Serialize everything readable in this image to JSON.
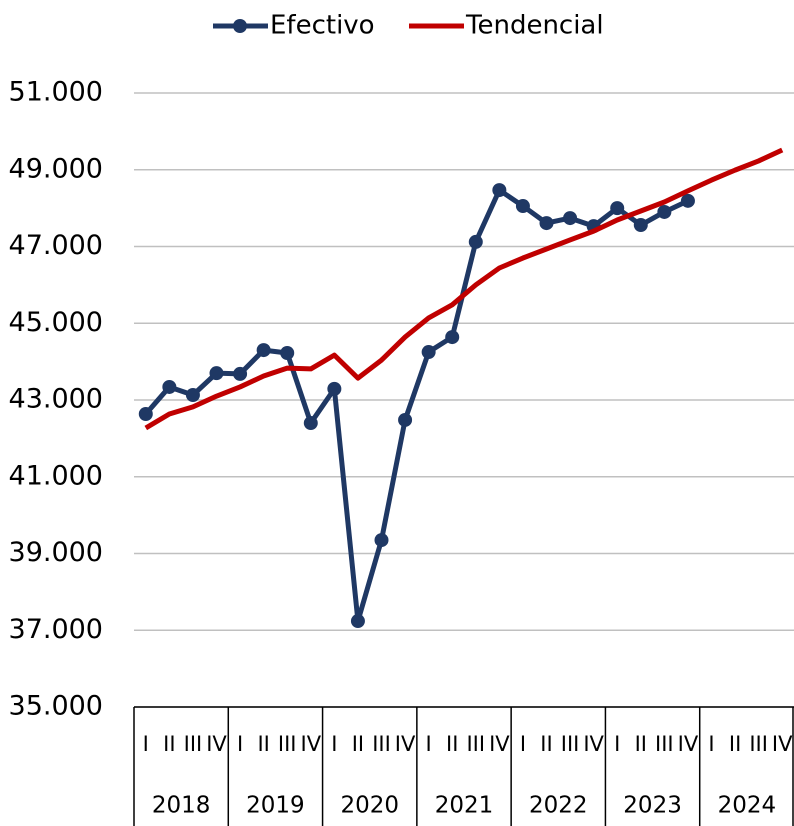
{
  "chart_data": {
    "type": "line",
    "categories": [
      "I",
      "II",
      "III",
      "IV",
      "I",
      "II",
      "III",
      "IV",
      "I",
      "II",
      "III",
      "IV",
      "I",
      "II",
      "III",
      "IV",
      "I",
      "II",
      "III",
      "IV",
      "I",
      "II",
      "III",
      "IV",
      "I",
      "II",
      "III",
      "IV"
    ],
    "groups": [
      "2018",
      "2019",
      "2020",
      "2021",
      "2022",
      "2023",
      "2024"
    ],
    "series": [
      {
        "name": "Efectivo",
        "color": "#1f3864",
        "marker": true,
        "values": [
          42635,
          43340,
          43130,
          43700,
          43680,
          44300,
          44225,
          42400,
          43290,
          37240,
          39350,
          42480,
          44250,
          44640,
          47120,
          48470,
          48055,
          47610,
          47740,
          47530,
          48000,
          47560,
          47900,
          48190,
          null,
          null,
          null,
          null
        ]
      },
      {
        "name": "Tendencial",
        "color": "#c00000",
        "marker": false,
        "values": [
          42270,
          42635,
          42820,
          43100,
          43340,
          43625,
          43830,
          43810,
          44170,
          43570,
          44040,
          44640,
          45140,
          45480,
          46000,
          46440,
          46700,
          46935,
          47170,
          47400,
          47690,
          47925,
          48160,
          48450,
          48730,
          48990,
          49230,
          49515
        ]
      }
    ],
    "ylim": [
      35000,
      51000
    ],
    "yticks": [
      {
        "value": 35000,
        "label": "35.000"
      },
      {
        "value": 37000,
        "label": "37.000"
      },
      {
        "value": 39000,
        "label": "39.000"
      },
      {
        "value": 41000,
        "label": "41.000"
      },
      {
        "value": 43000,
        "label": "43.000"
      },
      {
        "value": 45000,
        "label": "45.000"
      },
      {
        "value": 47000,
        "label": "47.000"
      },
      {
        "value": 49000,
        "label": "49.000"
      },
      {
        "value": 51000,
        "label": "51.000"
      }
    ],
    "grid": true,
    "legend": "top"
  }
}
